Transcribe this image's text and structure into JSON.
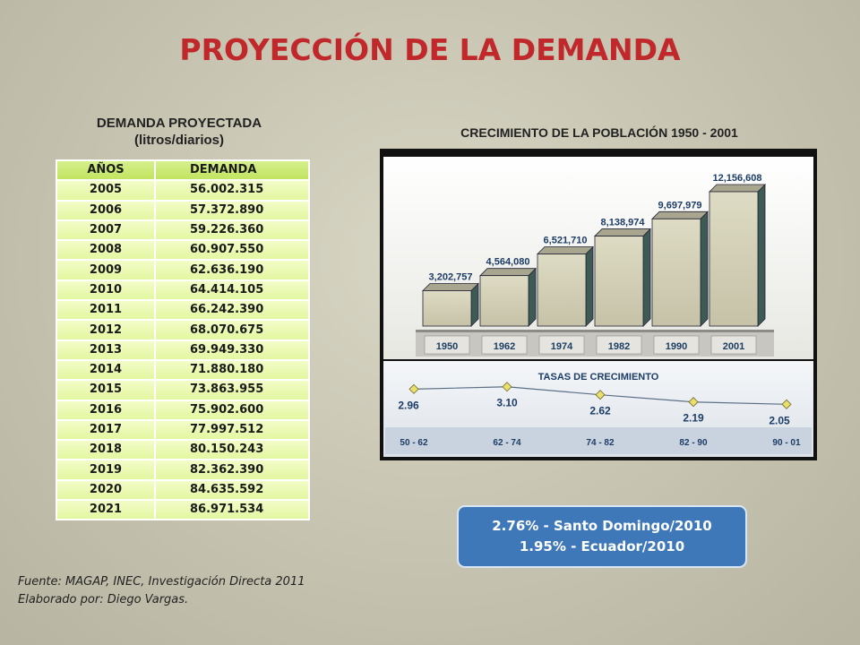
{
  "title": "PROYECCIÓN DE LA DEMANDA",
  "table": {
    "title": "DEMANDA PROYECTADA",
    "subtitle": "(litros/diarios)",
    "headers": [
      "AÑOS",
      "DEMANDA"
    ],
    "rows": [
      [
        "2005",
        "56.002.315"
      ],
      [
        "2006",
        "57.372.890"
      ],
      [
        "2007",
        "59.226.360"
      ],
      [
        "2008",
        "60.907.550"
      ],
      [
        "2009",
        "62.636.190"
      ],
      [
        "2010",
        "64.414.105"
      ],
      [
        "2011",
        "66.242.390"
      ],
      [
        "2012",
        "68.070.675"
      ],
      [
        "2013",
        "69.949.330"
      ],
      [
        "2014",
        "71.880.180"
      ],
      [
        "2015",
        "73.863.955"
      ],
      [
        "2016",
        "75.902.600"
      ],
      [
        "2017",
        "77.997.512"
      ],
      [
        "2018",
        "80.150.243"
      ],
      [
        "2019",
        "82.362.390"
      ],
      [
        "2020",
        "84.635.592"
      ],
      [
        "2021",
        "86.971.534"
      ]
    ]
  },
  "source_line1": "Fuente: MAGAP, INEC, Investigación Directa 2011",
  "source_line2": "Elaborado por: Diego Vargas.",
  "rates": {
    "line1": "2.76% - Santo Domingo/2010",
    "line2": "1.95% - Ecuador/2010"
  },
  "colors": {
    "title": "#c0282b",
    "bar_front": "#d2cfb6",
    "bar_side": "#3e5a55",
    "rate_box": "#3f78b8",
    "table_cell": "#e8f8aa"
  },
  "chart_data": [
    {
      "type": "bar",
      "title": "CRECIMIENTO DE LA POBLACIÓN 1950 - 2001",
      "categories": [
        "1950",
        "1962",
        "1974",
        "1982",
        "1990",
        "2001"
      ],
      "values": [
        3202757,
        4564080,
        6521710,
        8138974,
        9697979,
        12156608
      ],
      "value_labels": [
        "3,202,757",
        "4,564,080",
        "6,521,710",
        "8,138,974",
        "9,697,979",
        "12,156,608"
      ],
      "ylim": [
        0,
        12156608
      ],
      "grid": false
    },
    {
      "type": "line",
      "title": "TASAS DE CRECIMIENTO",
      "categories": [
        "50 - 62",
        "62 - 74",
        "74 - 82",
        "82 - 90",
        "90 - 01"
      ],
      "values": [
        2.96,
        3.1,
        2.62,
        2.19,
        2.05
      ],
      "value_labels": [
        "2.96",
        "3.10",
        "2.62",
        "2.19",
        "2.05"
      ],
      "grid": false
    }
  ]
}
